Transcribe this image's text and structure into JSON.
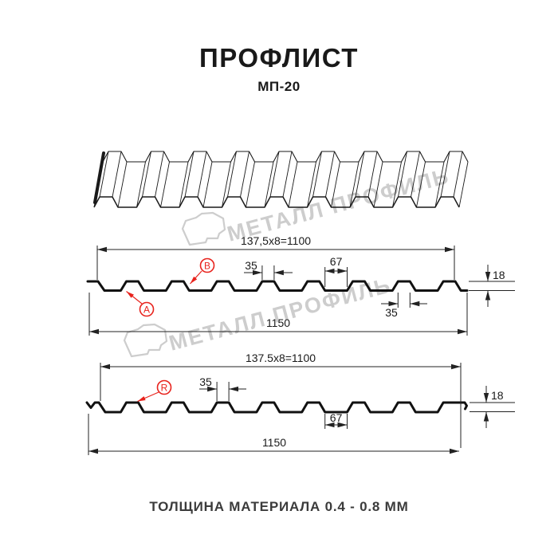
{
  "title": "ПРОФЛИСТ",
  "subtitle": "МП-20",
  "caption": "ТОЛЩИНА МАТЕРИАЛА 0.4 - 0.8 ММ",
  "watermark": {
    "text": "МЕТАЛЛ ПРОФИЛЬ",
    "logo_icon": "metall-profil-logo",
    "color": "#cdcdcd"
  },
  "colors": {
    "accent_red": "#e8231d",
    "line": "#1a1a1a"
  },
  "sections": {
    "front": {
      "module": "137,5x8=1100",
      "crest": "35",
      "pan": "67",
      "height": "18",
      "edge": "35",
      "total": "1150",
      "labels": {
        "a": "А",
        "b": "В"
      }
    },
    "back": {
      "module": "137.5x8=1100",
      "crest": "35",
      "pan": "67",
      "height": "18",
      "total": "1150",
      "labels": {
        "r": "R"
      }
    }
  }
}
